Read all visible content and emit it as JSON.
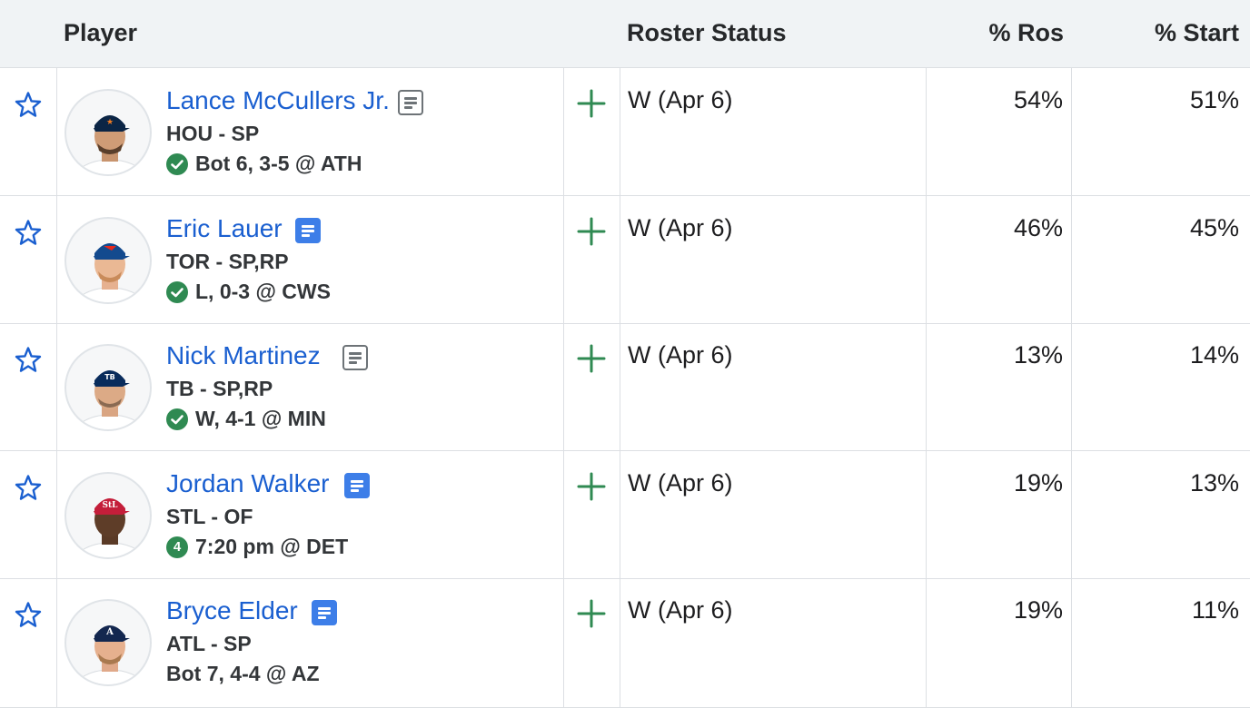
{
  "header": {
    "player": "Player",
    "roster_status": "Roster Status",
    "pct_ros": "% Ros",
    "pct_start": "% Start"
  },
  "colors": {
    "link": "#1a5fd0",
    "status_green": "#2f8a52",
    "note_blue": "#3d7ee8",
    "header_bg": "#f0f3f5"
  },
  "rows": [
    {
      "name": "Lance McCullers Jr.",
      "team_pos": "HOU - SP",
      "game": "Bot 6, 3-5 @ ATH",
      "game_icon": "check-circle-icon",
      "note_style": "plain",
      "status": "W (Apr 6)",
      "pct_ros": "54%",
      "pct_start": "51%"
    },
    {
      "name": "Eric Lauer",
      "team_pos": "TOR - SP,RP",
      "game": "L, 0-3 @ CWS",
      "game_icon": "check-circle-icon",
      "note_style": "blue",
      "status": "W (Apr 6)",
      "pct_ros": "46%",
      "pct_start": "45%"
    },
    {
      "name": "Nick Martinez",
      "team_pos": "TB - SP,RP",
      "game": "W, 4-1 @ MIN",
      "game_icon": "check-circle-icon",
      "note_style": "plain",
      "status": "W (Apr 6)",
      "pct_ros": "13%",
      "pct_start": "14%"
    },
    {
      "name": "Jordan Walker",
      "team_pos": "STL - OF",
      "game": "7:20 pm @ DET",
      "game_icon": "number-badge-icon",
      "game_badge": "4",
      "note_style": "blue",
      "status": "W (Apr 6)",
      "pct_ros": "19%",
      "pct_start": "13%"
    },
    {
      "name": "Bryce Elder",
      "team_pos": "ATL - SP",
      "game": "Bot 7, 4-4 @ AZ",
      "game_icon": "",
      "note_style": "blue",
      "status": "W (Apr 6)",
      "pct_ros": "19%",
      "pct_start": "11%"
    }
  ]
}
